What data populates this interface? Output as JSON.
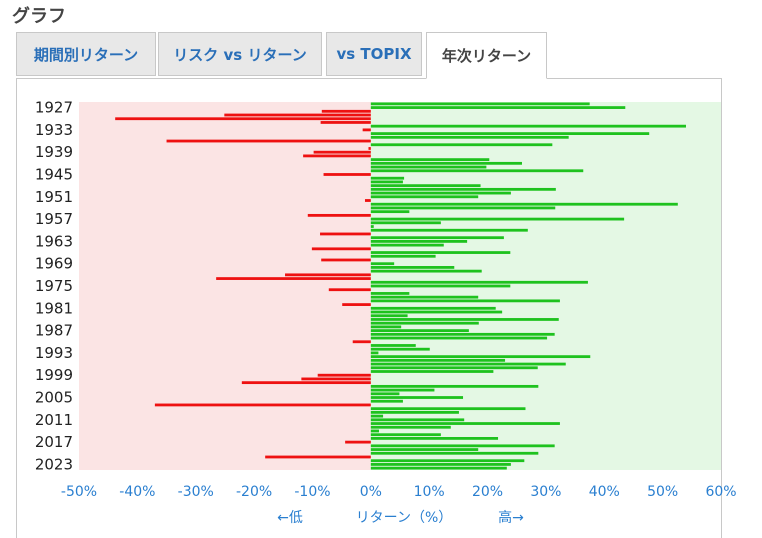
{
  "page": {
    "title": "グラフ"
  },
  "tabs": [
    {
      "label": "期間別リターン",
      "active": false
    },
    {
      "label": "リスク vs リターン",
      "active": false
    },
    {
      "label": "vs TOPIX",
      "active": false
    },
    {
      "label": "年次リターン",
      "active": true
    }
  ],
  "chart_data": {
    "type": "bar",
    "orientation": "horizontal",
    "x_axis": {
      "label": "リターン（%）",
      "low_label": "←低",
      "high_label": "高→",
      "xlim": [
        -50,
        60
      ],
      "tick_labels": [
        "-50%",
        "-40%",
        "-30%",
        "-20%",
        "-10%",
        "0%",
        "10%",
        "20%",
        "30%",
        "40%",
        "50%",
        "60%"
      ]
    },
    "y_axis": {
      "tick_labels": [
        "1927",
        "1933",
        "1939",
        "1945",
        "1951",
        "1957",
        "1963",
        "1969",
        "1975",
        "1981",
        "1987",
        "1993",
        "1999",
        "2005",
        "2011",
        "2017",
        "2023"
      ]
    },
    "colors": {
      "positive": "#1ec21e",
      "negative": "#ee1111",
      "positive_bg": "#e4f8e4",
      "negative_bg": "#fbe4e4"
    },
    "years": [
      1926,
      1927,
      1928,
      1929,
      1930,
      1931,
      1932,
      1933,
      1934,
      1935,
      1936,
      1937,
      1938,
      1939,
      1940,
      1941,
      1942,
      1943,
      1944,
      1945,
      1946,
      1947,
      1948,
      1949,
      1950,
      1951,
      1952,
      1953,
      1954,
      1955,
      1956,
      1957,
      1958,
      1959,
      1960,
      1961,
      1962,
      1963,
      1964,
      1965,
      1966,
      1967,
      1968,
      1969,
      1970,
      1971,
      1972,
      1973,
      1974,
      1975,
      1976,
      1977,
      1978,
      1979,
      1980,
      1981,
      1982,
      1983,
      1984,
      1985,
      1986,
      1987,
      1988,
      1989,
      1990,
      1991,
      1992,
      1993,
      1994,
      1995,
      1996,
      1997,
      1998,
      1999,
      2000,
      2001,
      2002,
      2003,
      2004,
      2005,
      2006,
      2007,
      2008,
      2009,
      2010,
      2011,
      2012,
      2013,
      2014,
      2015,
      2016,
      2017,
      2018,
      2019,
      2020,
      2021,
      2022,
      2023,
      2024
    ],
    "values": [
      37.5,
      43.6,
      -8.4,
      -25.1,
      -43.8,
      -8.6,
      54.0,
      -1.4,
      47.7,
      33.9,
      -35.0,
      31.1,
      -0.4,
      -9.8,
      -11.6,
      20.3,
      25.9,
      19.8,
      36.4,
      -8.1,
      5.7,
      5.5,
      18.8,
      31.7,
      24.0,
      18.4,
      -1.0,
      52.6,
      31.6,
      6.6,
      -10.8,
      43.4,
      12.0,
      0.5,
      26.9,
      -8.7,
      22.8,
      16.5,
      12.5,
      -10.1,
      23.9,
      11.1,
      -8.5,
      4.0,
      14.3,
      19.0,
      -14.7,
      -26.5,
      37.2,
      23.9,
      -7.2,
      6.6,
      18.4,
      32.4,
      -4.9,
      21.4,
      22.5,
      6.3,
      32.2,
      18.5,
      5.2,
      16.8,
      31.5,
      30.2,
      -3.1,
      7.7,
      10.1,
      1.3,
      37.6,
      23.0,
      33.4,
      28.6,
      21.0,
      -9.1,
      -11.9,
      -22.1,
      28.7,
      10.9,
      4.9,
      15.8,
      5.5,
      -37.0,
      26.5,
      15.1,
      2.1,
      16.0,
      32.4,
      13.7,
      1.4,
      12.0,
      21.8,
      -4.4,
      31.5,
      18.4,
      28.7,
      -18.1,
      26.3,
      24.0,
      23.3
    ]
  }
}
